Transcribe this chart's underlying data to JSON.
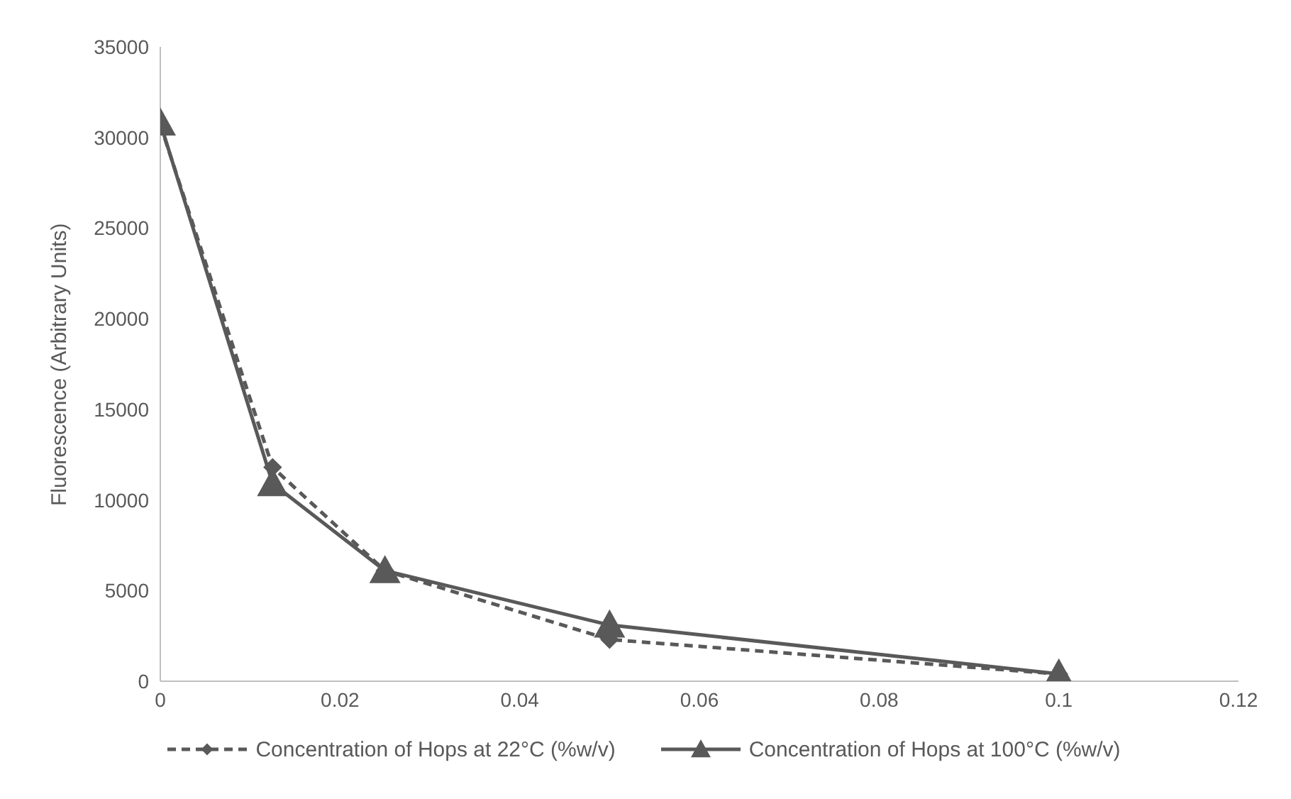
{
  "chart_data": {
    "type": "line",
    "ylabel": "Fluorescence (Arbitrary Units)",
    "x": [
      0,
      0.0125,
      0.025,
      0.05,
      0.1
    ],
    "series": [
      {
        "name": "Concentration of Hops at 22°C (%w/v)",
        "color": "#595959",
        "values": [
          30700,
          11800,
          6100,
          2300,
          400
        ],
        "marker": "diamond",
        "line_style": "dashed"
      },
      {
        "name": "Concentration of Hops at 100°C (%w/v)",
        "color": "#595959",
        "values": [
          30800,
          10900,
          6100,
          3100,
          400
        ],
        "marker": "triangle",
        "line_style": "solid"
      }
    ],
    "xlim": [
      0,
      0.12
    ],
    "xticks": [
      0,
      0.02,
      0.04,
      0.06,
      0.08,
      0.1,
      0.12
    ],
    "ylim": [
      0,
      35000
    ],
    "yticks": [
      0,
      5000,
      10000,
      15000,
      20000,
      25000,
      30000,
      35000
    ],
    "grid": false,
    "legend": "bottom"
  }
}
